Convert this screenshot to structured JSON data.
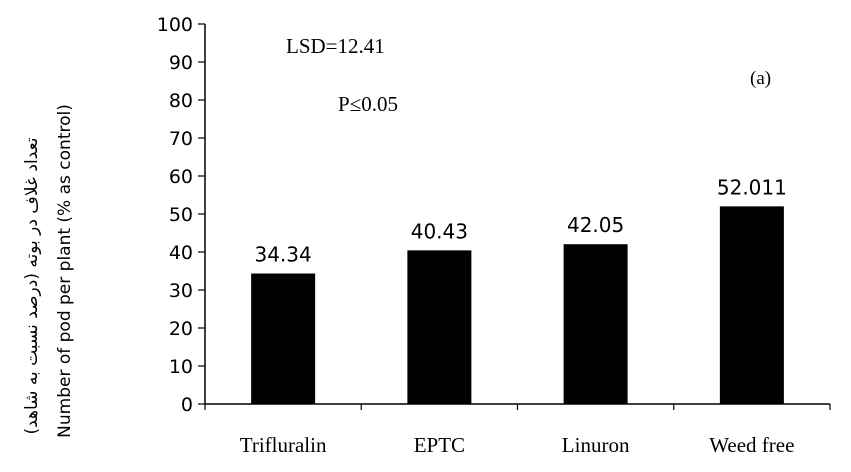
{
  "chart_data": {
    "type": "bar",
    "categories": [
      "Trifluralin",
      "EPTC",
      "Linuron",
      "Weed free"
    ],
    "values": [
      34.34,
      40.43,
      42.05,
      52.011
    ],
    "data_labels": [
      "34.34",
      "40.43",
      "42.05",
      "52.011"
    ],
    "ylabel_fa": "تعداد غلاف در بوته (درصد نسبت به شاهد)",
    "ylabel_en": "Number of pod per plant (% as control)",
    "ylim": [
      0,
      100
    ],
    "yticks": [
      0,
      10,
      20,
      30,
      40,
      50,
      60,
      70,
      80,
      90,
      100
    ],
    "annotations": [
      "LSD=12.41",
      "P≤0.05"
    ],
    "panel_label": "(a)",
    "bar_color": "#000000",
    "grid": false,
    "legend": "none"
  }
}
